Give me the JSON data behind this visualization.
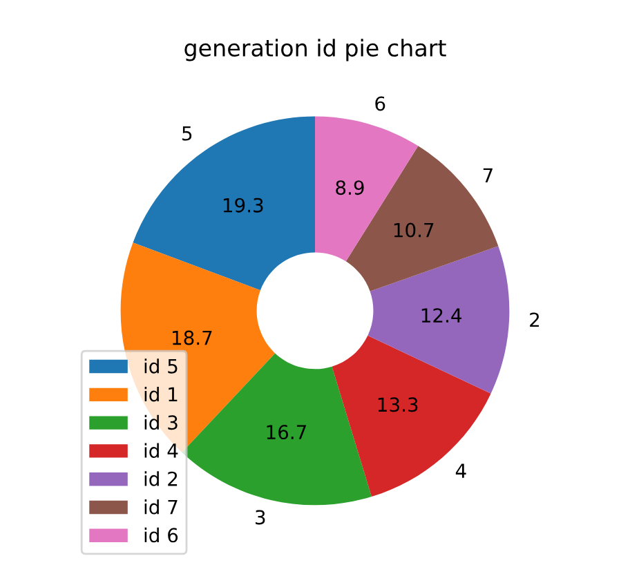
{
  "chart_data": {
    "type": "donut",
    "title": "generation id pie chart",
    "categories": [
      "id 5",
      "id 1",
      "id 3",
      "id 4",
      "id 2",
      "id 7",
      "id 6"
    ],
    "annotations": [
      "5",
      null,
      "3",
      "4",
      "2",
      "7",
      "6"
    ],
    "values": [
      19.3,
      18.7,
      16.7,
      13.3,
      12.4,
      10.7,
      8.9
    ],
    "colors": [
      "#1f77b4",
      "#ff7f0e",
      "#2ca02c",
      "#d62728",
      "#9467bd",
      "#8c564b",
      "#e377c2"
    ],
    "data_labels": true,
    "legend": "bottom left"
  }
}
